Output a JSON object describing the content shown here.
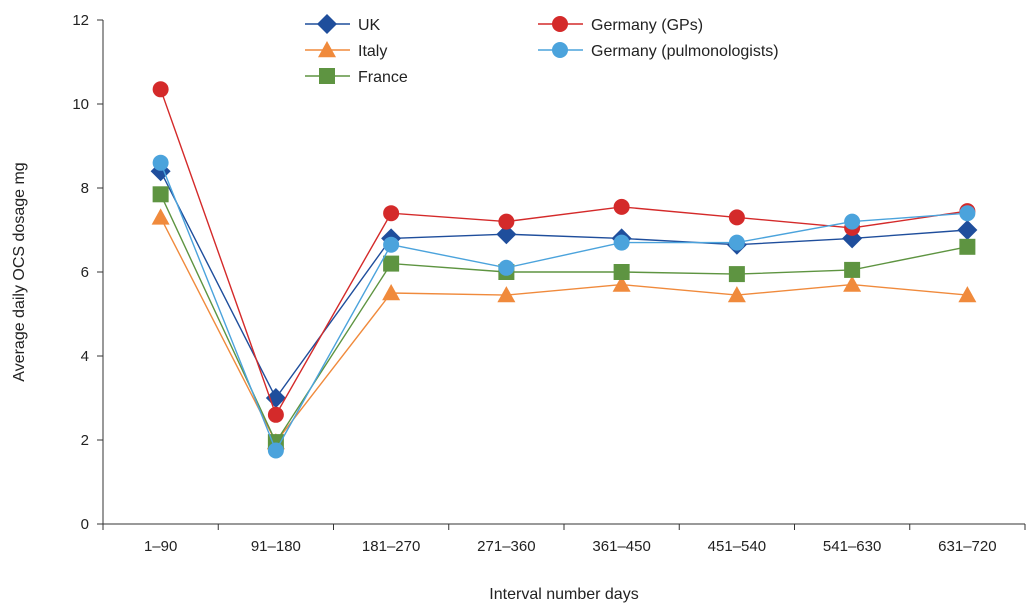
{
  "chart_data": {
    "type": "line",
    "title": "",
    "xlabel": "Interval number days",
    "ylabel": "Average daily OCS dosage mg",
    "categories": [
      "1–90",
      "91–180",
      "181–270",
      "271–360",
      "361–450",
      "451–540",
      "541–630",
      "631–720"
    ],
    "ylim": [
      0,
      12
    ],
    "yticks": [
      0,
      2,
      4,
      6,
      8,
      10,
      12
    ],
    "grid": false,
    "legend_position": "top",
    "series": [
      {
        "name": "UK",
        "marker": "diamond",
        "color": "#1f4e9c",
        "values": [
          8.4,
          3.0,
          6.8,
          6.9,
          6.8,
          6.65,
          6.8,
          7.0
        ]
      },
      {
        "name": "Italy",
        "marker": "triangle",
        "color": "#f08a3c",
        "values": [
          7.3,
          1.95,
          5.5,
          5.45,
          5.7,
          5.45,
          5.7,
          5.45
        ]
      },
      {
        "name": "France",
        "marker": "square",
        "color": "#5e9441",
        "values": [
          7.85,
          1.95,
          6.2,
          6.0,
          6.0,
          5.95,
          6.05,
          6.6
        ]
      },
      {
        "name": "Germany (GPs)",
        "marker": "circle",
        "color": "#d42a2a",
        "values": [
          10.35,
          2.6,
          7.4,
          7.2,
          7.55,
          7.3,
          7.05,
          7.45
        ]
      },
      {
        "name": "Germany (pulmonologists)",
        "marker": "circle",
        "color": "#4ba3dc",
        "values": [
          8.6,
          1.75,
          6.65,
          6.1,
          6.7,
          6.7,
          7.2,
          7.4
        ]
      }
    ]
  }
}
